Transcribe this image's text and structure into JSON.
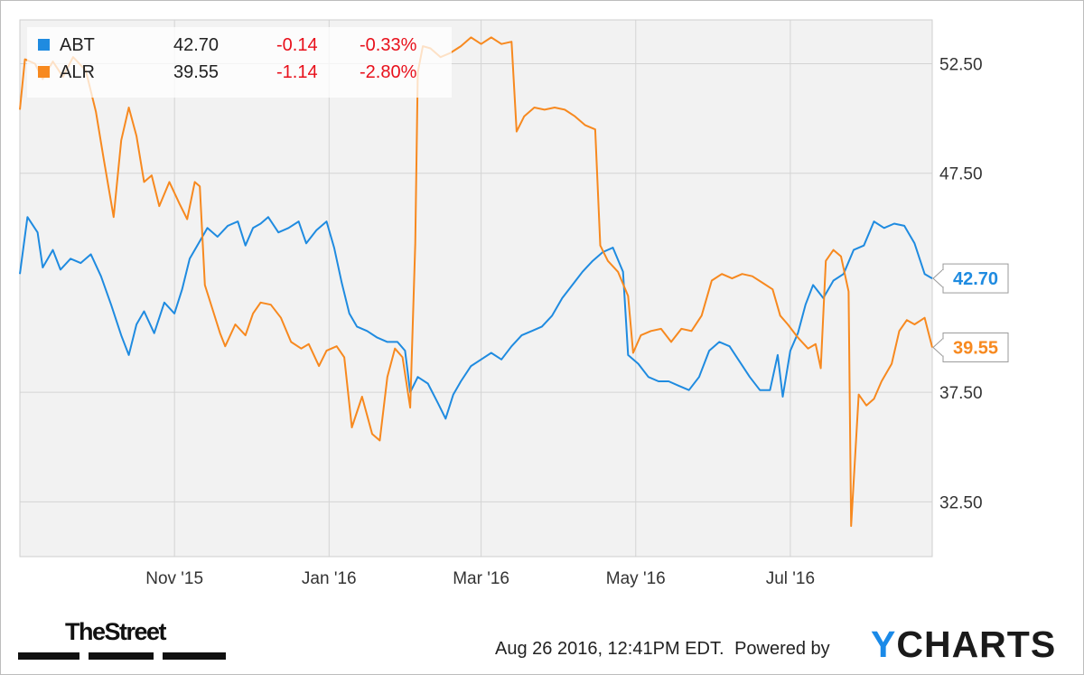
{
  "chart_data": {
    "type": "line",
    "x_range": [
      "2015-09-01",
      "2016-08-26"
    ],
    "y_range": [
      30.0,
      54.5
    ],
    "y_ticks": [
      32.5,
      37.5,
      47.5,
      52.5
    ],
    "y_tick_labels": [
      "32.50",
      "37.50",
      "47.50",
      "52.50"
    ],
    "x_ticks": [
      {
        "date": "2015-11-01",
        "label": "Nov '15"
      },
      {
        "date": "2016-01-01",
        "label": "Jan '16"
      },
      {
        "date": "2016-03-01",
        "label": "Mar '16"
      },
      {
        "date": "2016-05-01",
        "label": "May '16"
      },
      {
        "date": "2016-07-01",
        "label": "Jul '16"
      }
    ],
    "grid": true,
    "legend_position": "top-left",
    "series": [
      {
        "name": "ABT",
        "color": "#1f8be0",
        "legend": {
          "price": "42.70",
          "change": "-0.14",
          "pct": "-0.33%"
        },
        "end_label": "42.70",
        "points": [
          [
            "2015-09-01",
            42.9
          ],
          [
            "2015-09-04",
            45.5
          ],
          [
            "2015-09-08",
            44.8
          ],
          [
            "2015-09-10",
            43.2
          ],
          [
            "2015-09-14",
            44.0
          ],
          [
            "2015-09-17",
            43.1
          ],
          [
            "2015-09-21",
            43.6
          ],
          [
            "2015-09-25",
            43.4
          ],
          [
            "2015-09-29",
            43.8
          ],
          [
            "2015-10-03",
            42.8
          ],
          [
            "2015-10-07",
            41.5
          ],
          [
            "2015-10-11",
            40.1
          ],
          [
            "2015-10-14",
            39.2
          ],
          [
            "2015-10-17",
            40.6
          ],
          [
            "2015-10-20",
            41.2
          ],
          [
            "2015-10-24",
            40.2
          ],
          [
            "2015-10-28",
            41.6
          ],
          [
            "2015-11-01",
            41.1
          ],
          [
            "2015-11-04",
            42.2
          ],
          [
            "2015-11-07",
            43.6
          ],
          [
            "2015-11-10",
            44.2
          ],
          [
            "2015-11-14",
            45.0
          ],
          [
            "2015-11-18",
            44.6
          ],
          [
            "2015-11-22",
            45.1
          ],
          [
            "2015-11-26",
            45.3
          ],
          [
            "2015-11-29",
            44.2
          ],
          [
            "2015-12-02",
            45.0
          ],
          [
            "2015-12-05",
            45.2
          ],
          [
            "2015-12-08",
            45.5
          ],
          [
            "2015-12-12",
            44.8
          ],
          [
            "2015-12-16",
            45.0
          ],
          [
            "2015-12-20",
            45.3
          ],
          [
            "2015-12-23",
            44.3
          ],
          [
            "2015-12-27",
            44.9
          ],
          [
            "2015-12-31",
            45.3
          ],
          [
            "2016-01-03",
            44.1
          ],
          [
            "2016-01-06",
            42.5
          ],
          [
            "2016-01-09",
            41.1
          ],
          [
            "2016-01-12",
            40.5
          ],
          [
            "2016-01-16",
            40.3
          ],
          [
            "2016-01-20",
            40.0
          ],
          [
            "2016-01-24",
            39.8
          ],
          [
            "2016-01-28",
            39.8
          ],
          [
            "2016-01-31",
            39.4
          ],
          [
            "2016-02-02",
            37.5
          ],
          [
            "2016-02-05",
            38.2
          ],
          [
            "2016-02-09",
            37.9
          ],
          [
            "2016-02-13",
            37.0
          ],
          [
            "2016-02-16",
            36.3
          ],
          [
            "2016-02-19",
            37.4
          ],
          [
            "2016-02-22",
            38.0
          ],
          [
            "2016-02-26",
            38.7
          ],
          [
            "2016-03-01",
            39.0
          ],
          [
            "2016-03-05",
            39.3
          ],
          [
            "2016-03-09",
            39.0
          ],
          [
            "2016-03-13",
            39.6
          ],
          [
            "2016-03-17",
            40.1
          ],
          [
            "2016-03-21",
            40.3
          ],
          [
            "2016-03-25",
            40.5
          ],
          [
            "2016-03-29",
            41.0
          ],
          [
            "2016-04-02",
            41.8
          ],
          [
            "2016-04-06",
            42.4
          ],
          [
            "2016-04-10",
            43.0
          ],
          [
            "2016-04-14",
            43.5
          ],
          [
            "2016-04-18",
            43.9
          ],
          [
            "2016-04-22",
            44.1
          ],
          [
            "2016-04-26",
            43.0
          ],
          [
            "2016-04-28",
            39.2
          ],
          [
            "2016-05-02",
            38.8
          ],
          [
            "2016-05-06",
            38.2
          ],
          [
            "2016-05-10",
            38.0
          ],
          [
            "2016-05-14",
            38.0
          ],
          [
            "2016-05-18",
            37.8
          ],
          [
            "2016-05-22",
            37.6
          ],
          [
            "2016-05-26",
            38.2
          ],
          [
            "2016-05-30",
            39.4
          ],
          [
            "2016-06-03",
            39.8
          ],
          [
            "2016-06-07",
            39.6
          ],
          [
            "2016-06-11",
            38.9
          ],
          [
            "2016-06-15",
            38.2
          ],
          [
            "2016-06-19",
            37.6
          ],
          [
            "2016-06-23",
            37.6
          ],
          [
            "2016-06-26",
            39.2
          ],
          [
            "2016-06-28",
            37.3
          ],
          [
            "2016-07-01",
            39.4
          ],
          [
            "2016-07-04",
            40.2
          ],
          [
            "2016-07-07",
            41.5
          ],
          [
            "2016-07-10",
            42.4
          ],
          [
            "2016-07-14",
            41.8
          ],
          [
            "2016-07-18",
            42.6
          ],
          [
            "2016-07-22",
            42.9
          ],
          [
            "2016-07-26",
            44.0
          ],
          [
            "2016-07-30",
            44.2
          ],
          [
            "2016-08-03",
            45.3
          ],
          [
            "2016-08-07",
            45.0
          ],
          [
            "2016-08-11",
            45.2
          ],
          [
            "2016-08-15",
            45.1
          ],
          [
            "2016-08-19",
            44.3
          ],
          [
            "2016-08-23",
            42.9
          ],
          [
            "2016-08-26",
            42.7
          ]
        ]
      },
      {
        "name": "ALR",
        "color": "#f7891f",
        "legend": {
          "price": "39.55",
          "change": "-1.14",
          "pct": "-2.80%"
        },
        "end_label": "39.55",
        "points": [
          [
            "2015-09-01",
            50.4
          ],
          [
            "2015-09-03",
            52.7
          ],
          [
            "2015-09-07",
            52.5
          ],
          [
            "2015-09-10",
            51.8
          ],
          [
            "2015-09-14",
            52.6
          ],
          [
            "2015-09-18",
            51.9
          ],
          [
            "2015-09-22",
            52.8
          ],
          [
            "2015-09-27",
            52.2
          ],
          [
            "2015-10-01",
            50.3
          ],
          [
            "2015-10-04",
            48.2
          ],
          [
            "2015-10-08",
            45.5
          ],
          [
            "2015-10-11",
            49.0
          ],
          [
            "2015-10-14",
            50.5
          ],
          [
            "2015-10-17",
            49.2
          ],
          [
            "2015-10-20",
            47.1
          ],
          [
            "2015-10-23",
            47.4
          ],
          [
            "2015-10-26",
            46.0
          ],
          [
            "2015-10-30",
            47.1
          ],
          [
            "2015-11-03",
            46.1
          ],
          [
            "2015-11-06",
            45.4
          ],
          [
            "2015-11-09",
            47.1
          ],
          [
            "2015-11-11",
            46.9
          ],
          [
            "2015-11-13",
            42.4
          ],
          [
            "2015-11-16",
            41.3
          ],
          [
            "2015-11-19",
            40.2
          ],
          [
            "2015-11-21",
            39.6
          ],
          [
            "2015-11-25",
            40.6
          ],
          [
            "2015-11-29",
            40.1
          ],
          [
            "2015-12-02",
            41.1
          ],
          [
            "2015-12-05",
            41.6
          ],
          [
            "2015-12-09",
            41.5
          ],
          [
            "2015-12-13",
            40.9
          ],
          [
            "2015-12-17",
            39.8
          ],
          [
            "2015-12-21",
            39.5
          ],
          [
            "2015-12-24",
            39.7
          ],
          [
            "2015-12-28",
            38.7
          ],
          [
            "2015-12-31",
            39.4
          ],
          [
            "2016-01-04",
            39.6
          ],
          [
            "2016-01-07",
            39.1
          ],
          [
            "2016-01-10",
            35.9
          ],
          [
            "2016-01-14",
            37.3
          ],
          [
            "2016-01-18",
            35.6
          ],
          [
            "2016-01-21",
            35.3
          ],
          [
            "2016-01-24",
            38.2
          ],
          [
            "2016-01-27",
            39.5
          ],
          [
            "2016-01-30",
            39.1
          ],
          [
            "2016-02-02",
            36.8
          ],
          [
            "2016-02-04",
            44.3
          ],
          [
            "2016-02-05",
            52.1
          ],
          [
            "2016-02-07",
            53.3
          ],
          [
            "2016-02-10",
            53.2
          ],
          [
            "2016-02-14",
            52.8
          ],
          [
            "2016-02-18",
            53.0
          ],
          [
            "2016-02-22",
            53.3
          ],
          [
            "2016-02-26",
            53.7
          ],
          [
            "2016-03-01",
            53.4
          ],
          [
            "2016-03-05",
            53.7
          ],
          [
            "2016-03-09",
            53.4
          ],
          [
            "2016-03-13",
            53.5
          ],
          [
            "2016-03-15",
            49.4
          ],
          [
            "2016-03-18",
            50.1
          ],
          [
            "2016-03-22",
            50.5
          ],
          [
            "2016-03-26",
            50.4
          ],
          [
            "2016-03-30",
            50.5
          ],
          [
            "2016-04-03",
            50.4
          ],
          [
            "2016-04-07",
            50.1
          ],
          [
            "2016-04-11",
            49.7
          ],
          [
            "2016-04-15",
            49.5
          ],
          [
            "2016-04-17",
            44.2
          ],
          [
            "2016-04-20",
            43.5
          ],
          [
            "2016-04-24",
            43.0
          ],
          [
            "2016-04-28",
            41.9
          ],
          [
            "2016-04-30",
            39.3
          ],
          [
            "2016-05-03",
            40.1
          ],
          [
            "2016-05-07",
            40.3
          ],
          [
            "2016-05-11",
            40.4
          ],
          [
            "2016-05-15",
            39.8
          ],
          [
            "2016-05-19",
            40.4
          ],
          [
            "2016-05-23",
            40.3
          ],
          [
            "2016-05-27",
            41.0
          ],
          [
            "2016-05-31",
            42.6
          ],
          [
            "2016-06-04",
            42.9
          ],
          [
            "2016-06-08",
            42.7
          ],
          [
            "2016-06-12",
            42.9
          ],
          [
            "2016-06-16",
            42.8
          ],
          [
            "2016-06-20",
            42.5
          ],
          [
            "2016-06-24",
            42.2
          ],
          [
            "2016-06-27",
            41.0
          ],
          [
            "2016-06-30",
            40.6
          ],
          [
            "2016-07-04",
            40.0
          ],
          [
            "2016-07-08",
            39.5
          ],
          [
            "2016-07-11",
            39.7
          ],
          [
            "2016-07-13",
            38.6
          ],
          [
            "2016-07-15",
            43.5
          ],
          [
            "2016-07-18",
            44.0
          ],
          [
            "2016-07-21",
            43.7
          ],
          [
            "2016-07-24",
            42.1
          ],
          [
            "2016-07-25",
            31.4
          ],
          [
            "2016-07-28",
            37.4
          ],
          [
            "2016-07-31",
            36.9
          ],
          [
            "2016-08-03",
            37.2
          ],
          [
            "2016-08-06",
            38.0
          ],
          [
            "2016-08-10",
            38.8
          ],
          [
            "2016-08-13",
            40.3
          ],
          [
            "2016-08-16",
            40.8
          ],
          [
            "2016-08-19",
            40.6
          ],
          [
            "2016-08-23",
            40.9
          ],
          [
            "2016-08-26",
            39.55
          ]
        ]
      }
    ]
  },
  "footer": {
    "timestamp": "Aug 26 2016, 12:41PM EDT.",
    "powered_by": "Powered by",
    "brand_y": "Y",
    "brand_rest": "CHARTS",
    "brand_color": "#1a8ae8",
    "publisher_logo": "TheStreet"
  }
}
